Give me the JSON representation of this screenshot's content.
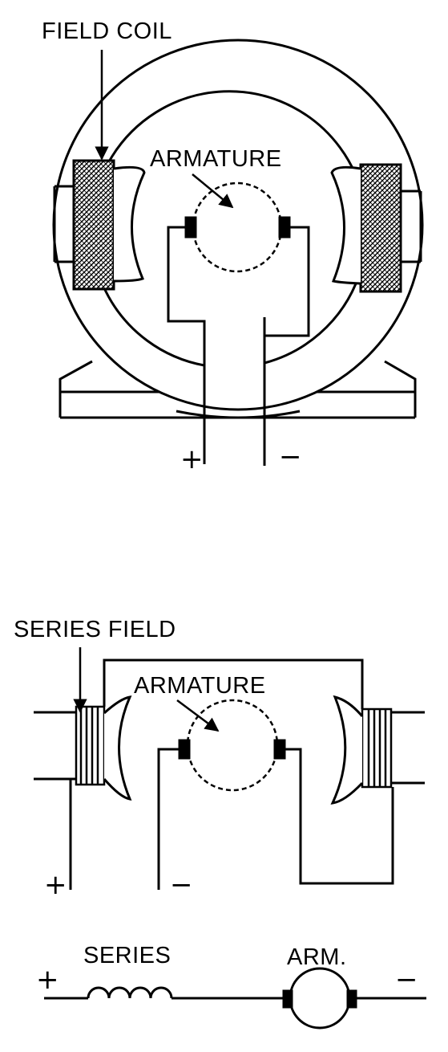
{
  "motor_diagram": {
    "field_coil_label": "FIELD COIL",
    "armature_label": "ARMATURE",
    "plus": "+",
    "minus": "−"
  },
  "series_diagram": {
    "series_field_label": "SERIES FIELD",
    "armature_label": "ARMATURE",
    "plus": "+",
    "minus": "−"
  },
  "schematic": {
    "series_label": "SERIES",
    "arm_label": "ARM.",
    "plus": "+",
    "minus": "−"
  },
  "colors": {
    "line": "#000000",
    "background": "#ffffff"
  }
}
